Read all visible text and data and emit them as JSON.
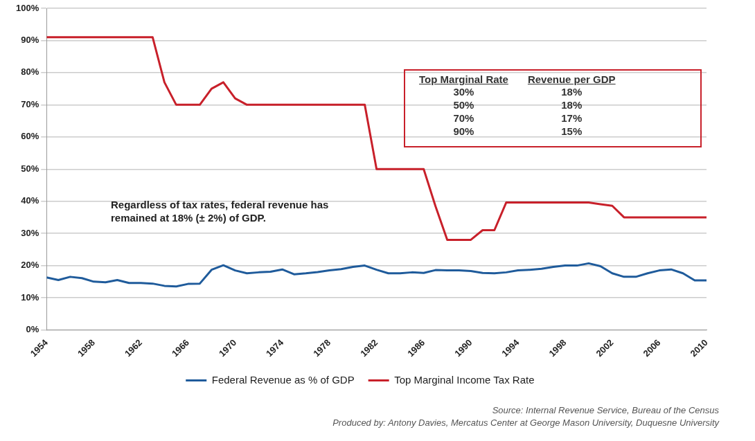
{
  "chart_data": {
    "type": "line",
    "x": [
      1954,
      1955,
      1956,
      1957,
      1958,
      1959,
      1960,
      1961,
      1962,
      1963,
      1964,
      1965,
      1966,
      1967,
      1968,
      1969,
      1970,
      1971,
      1972,
      1973,
      1974,
      1975,
      1976,
      1977,
      1978,
      1979,
      1980,
      1981,
      1982,
      1983,
      1984,
      1985,
      1986,
      1987,
      1988,
      1989,
      1990,
      1991,
      1992,
      1993,
      1994,
      1995,
      1996,
      1997,
      1998,
      1999,
      2000,
      2001,
      2002,
      2003,
      2004,
      2005,
      2006,
      2007,
      2008,
      2009,
      2010
    ],
    "series": [
      {
        "name": "Federal Revenue as % of GDP",
        "color": "#1f5b9b",
        "values": [
          16.3,
          15.5,
          16.5,
          16.1,
          15.0,
          14.8,
          15.5,
          14.6,
          14.6,
          14.4,
          13.7,
          13.5,
          14.3,
          14.4,
          18.7,
          20.1,
          18.5,
          17.6,
          17.9,
          18.1,
          18.8,
          17.3,
          17.6,
          18.0,
          18.5,
          18.9,
          19.6,
          20.0,
          18.7,
          17.6,
          17.6,
          17.9,
          17.7,
          18.6,
          18.5,
          18.5,
          18.3,
          17.7,
          17.6,
          17.9,
          18.5,
          18.7,
          19.0,
          19.6,
          20.0,
          20.0,
          20.7,
          19.8,
          17.6,
          16.5,
          16.5,
          17.6,
          18.5,
          18.8,
          17.6,
          15.4,
          15.4
        ]
      },
      {
        "name": "Top Marginal Income Tax Rate",
        "color": "#c8202a",
        "values": [
          91,
          91,
          91,
          91,
          91,
          91,
          91,
          91,
          91,
          91,
          77,
          70,
          70,
          70,
          75,
          77,
          72,
          70,
          70,
          70,
          70,
          70,
          70,
          70,
          70,
          70,
          70,
          70,
          50,
          50,
          50,
          50,
          50,
          38.5,
          28,
          28,
          28,
          31,
          31,
          39.6,
          39.6,
          39.6,
          39.6,
          39.6,
          39.6,
          39.6,
          39.6,
          39.1,
          38.6,
          35,
          35,
          35,
          35,
          35,
          35,
          35,
          35
        ]
      }
    ],
    "xlim": [
      1954,
      2010
    ],
    "xticks": [
      1954,
      1958,
      1962,
      1966,
      1970,
      1974,
      1978,
      1982,
      1986,
      1990,
      1994,
      1998,
      2002,
      2006,
      2010
    ],
    "ylim": [
      0,
      100
    ],
    "yticks": [
      {
        "value": 0,
        "label": "0%"
      },
      {
        "value": 10,
        "label": "10%"
      },
      {
        "value": 20,
        "label": "20%"
      },
      {
        "value": 30,
        "label": "30%"
      },
      {
        "value": 40,
        "label": "40%"
      },
      {
        "value": 50,
        "label": "50%"
      },
      {
        "value": 60,
        "label": "60%"
      },
      {
        "value": 70,
        "label": "70%"
      },
      {
        "value": 80,
        "label": "80%"
      },
      {
        "value": 90,
        "label": "90%"
      },
      {
        "value": 100,
        "label": "100%"
      }
    ],
    "grid": "y",
    "legend": "bottom",
    "marker": "none",
    "line_style": "solid",
    "annotations": [
      "Regardless of tax rates, federal revenue has remained at 18% (± 2%) of GDP.",
      "Top Marginal Rate",
      "Revenue per GDP",
      "30%",
      "18%",
      "50%",
      "18%",
      "70%",
      "17%",
      "90%",
      "15%",
      "Source: Internal Revenue Service, Bureau of the Census",
      "Produced by: Antony Davies, Mercatus Center at George Mason University, Duquesne University"
    ]
  }
}
